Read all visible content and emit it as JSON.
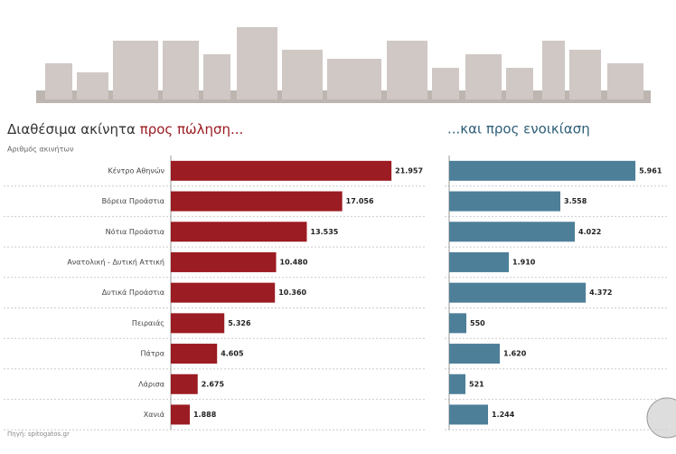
{
  "chart_data": [
    {
      "type": "hbar",
      "title": "Διαθέσιμα ακίνητα",
      "title_highlight": "προς πώληση...",
      "subtitle": "Αριθμός ακινήτων",
      "categories": [
        "Κέντρο Αθηνών",
        "Βόρεια Προάστια",
        "Νότια Προάστια",
        "Ανατολική - Δυτική Αττική",
        "Δυτικά Προάστια",
        "Πειραιάς",
        "Πάτρα",
        "Λάρισα",
        "Χανιά"
      ],
      "values": [
        21957,
        17056,
        13535,
        10480,
        10360,
        5326,
        4605,
        2675,
        1888
      ],
      "value_labels": [
        "21.957",
        "17.056",
        "13.535",
        "10.480",
        "10.360",
        "5.326",
        "4.605",
        "2.675",
        "1.888"
      ],
      "color": "#9b1c22",
      "xlim": [
        0,
        25000
      ]
    },
    {
      "type": "hbar",
      "title": "...και προς ενοικίαση",
      "values": [
        5961,
        3558,
        4022,
        1910,
        4372,
        550,
        1620,
        521,
        1244
      ],
      "value_labels": [
        "5.961",
        "3.558",
        "4.022",
        "1.910",
        "4.372",
        "550",
        "1.620",
        "521",
        "1.244"
      ],
      "color": "#4d7f99",
      "xlim": [
        0,
        7000
      ]
    }
  ],
  "source": "Πηγή: spitogatos.gr"
}
